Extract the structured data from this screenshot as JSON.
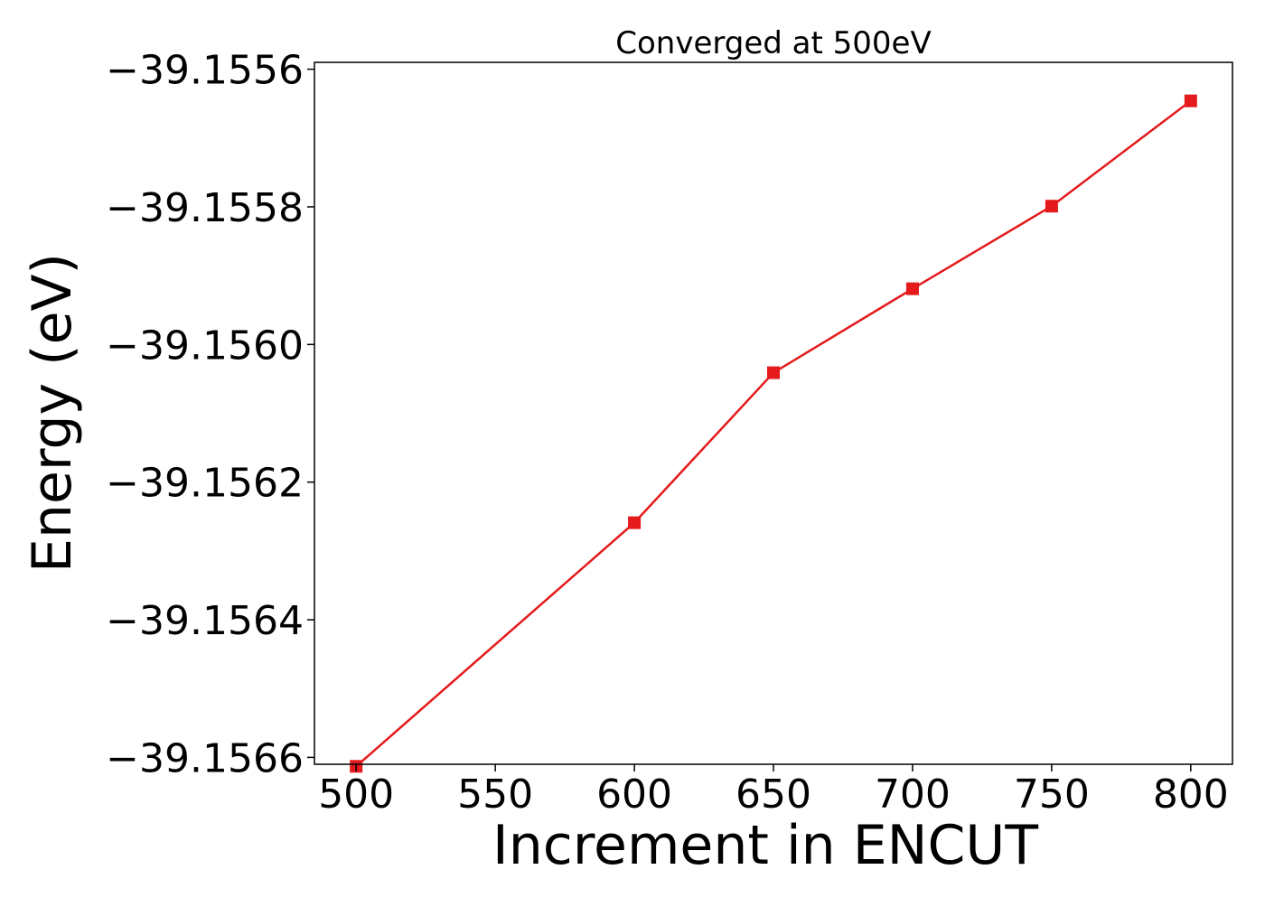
{
  "chart_data": {
    "type": "line",
    "title": "Converged at 500eV",
    "xlabel": "Increment in ENCUT",
    "ylabel": "Energy (eV)",
    "xlim": [
      485,
      815
    ],
    "ylim": [
      -39.15661,
      -39.15559
    ],
    "x_ticks": [
      500,
      550,
      600,
      650,
      700,
      750,
      800
    ],
    "x_tick_labels": [
      "500",
      "550",
      "600",
      "650",
      "700",
      "750",
      "800"
    ],
    "y_ticks": [
      -39.1556,
      -39.1558,
      -39.156,
      -39.1562,
      -39.1564,
      -39.1566
    ],
    "y_tick_labels": [
      "−39.1556",
      "−39.1558",
      "−39.1560",
      "−39.1562",
      "−39.1564",
      "−39.1566"
    ],
    "grid": false,
    "series": [
      {
        "color": "#e41a1c",
        "marker": "square",
        "x": [
          500,
          600,
          650,
          700,
          750,
          800
        ],
        "y": [
          -39.156613,
          -39.156259,
          -39.156041,
          -39.155919,
          -39.155799,
          -39.155646
        ]
      }
    ]
  }
}
